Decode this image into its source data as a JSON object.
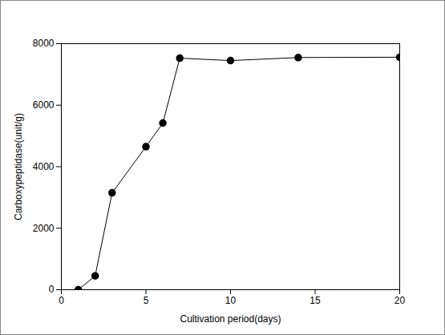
{
  "chart_data": {
    "type": "line",
    "x_label": "Cultivation period(days)",
    "y_label": "Carboxypeptidase(unit/g)",
    "x": [
      1,
      2,
      3,
      5,
      6,
      7,
      10,
      14,
      20
    ],
    "values": [
      0,
      450,
      3150,
      4650,
      5420,
      7530,
      7450,
      7550,
      7560
    ],
    "color": "#000000",
    "marker": "circle",
    "line_style": "solid",
    "xlim": [
      0,
      20
    ],
    "xticks": [
      0,
      5,
      10,
      15,
      20
    ],
    "ylim": [
      0,
      8000
    ],
    "yticks": [
      0,
      2000,
      4000,
      6000,
      8000
    ],
    "grid": false
  }
}
